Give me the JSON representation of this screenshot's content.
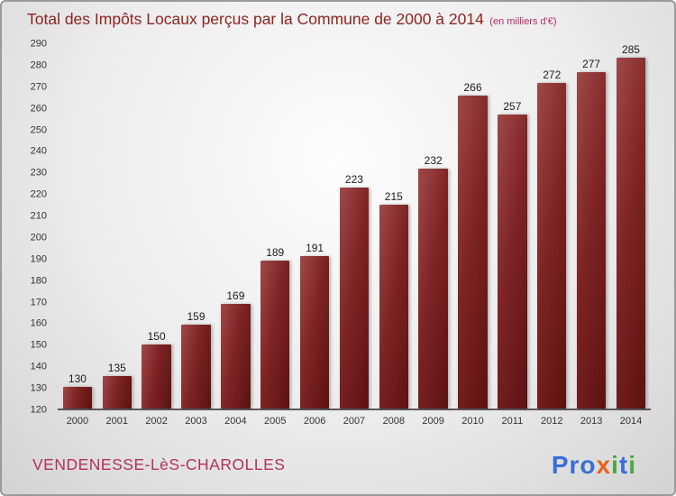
{
  "title": {
    "text": "Total des Impôts Locaux perçus par la Commune de 2000 à 2014",
    "suffix": "(en milliers d'€)"
  },
  "footer": {
    "commune": "VENDENESSE-LèS-CHAROLLES",
    "logo_letters": [
      {
        "ch": "P",
        "color": "#3a6fd8"
      },
      {
        "ch": "r",
        "color": "#3a6fd8"
      },
      {
        "ch": "o",
        "color": "#3a6fd8"
      },
      {
        "ch": "x",
        "color": "#e8641c"
      },
      {
        "ch": "i",
        "color": "#49a942"
      },
      {
        "ch": "t",
        "color": "#3a6fd8"
      },
      {
        "ch": "i",
        "color": "#49a942"
      }
    ]
  },
  "colors": {
    "bar_light": "#a04848",
    "bar_dark": "#5c1212",
    "title": "#8e2420",
    "subtitle": "#b52e63",
    "commune": "#b5305e"
  },
  "chart_data": {
    "type": "bar",
    "title": "Total des Impôts Locaux perçus par la Commune de 2000 à 2014",
    "subtitle": "(en milliers d'€)",
    "categories": [
      "2000",
      "2001",
      "2002",
      "2003",
      "2004",
      "2005",
      "2006",
      "2007",
      "2008",
      "2009",
      "2010",
      "2011",
      "2012",
      "2013",
      "2014"
    ],
    "values": [
      130,
      135,
      150,
      159,
      169,
      189,
      191,
      223,
      215,
      232,
      266,
      257,
      272,
      277,
      285
    ],
    "xlabel": "",
    "ylabel": "",
    "ylim": [
      120,
      290
    ],
    "yticks": [
      120,
      130,
      140,
      150,
      160,
      170,
      180,
      190,
      200,
      210,
      220,
      230,
      240,
      250,
      260,
      270,
      280,
      290
    ],
    "grid": false,
    "legend": false,
    "data_labels": true
  }
}
